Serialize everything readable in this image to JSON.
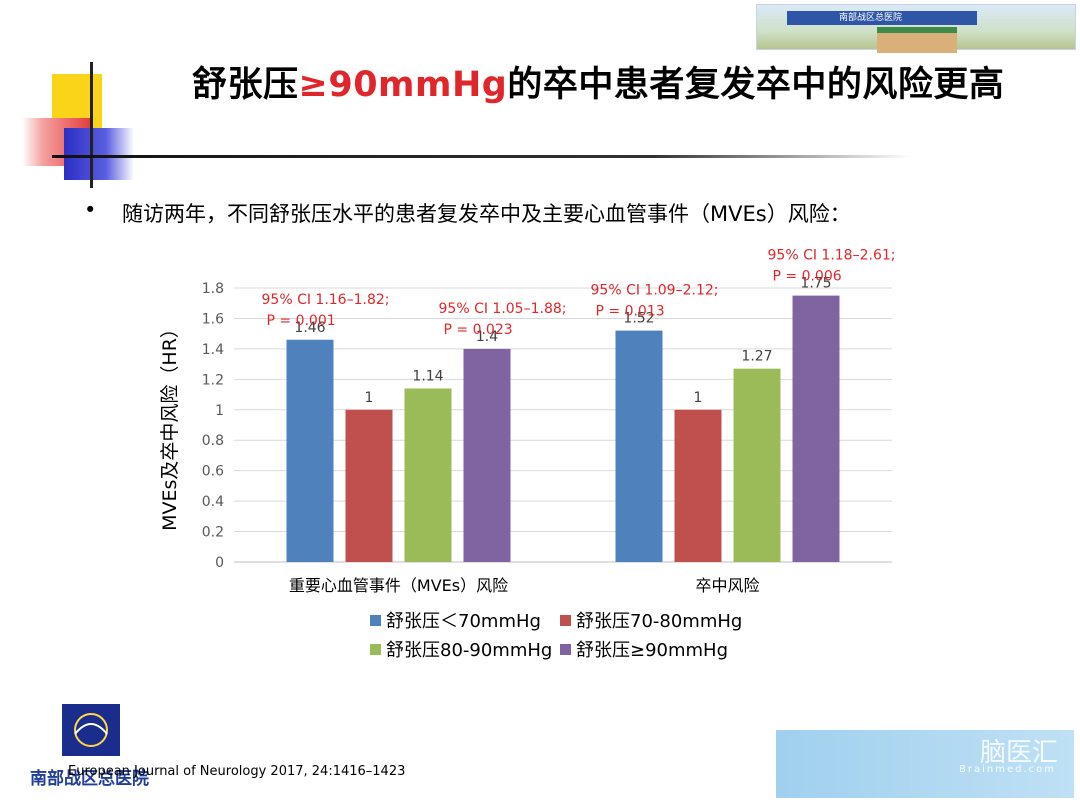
{
  "header": {
    "title_prefix": "舒张压",
    "title_highlight": "≥90mmHg",
    "title_suffix": "的卒中患者复发卒中的风险更高",
    "hospital_banner_text": "南部战区总医院"
  },
  "bullet": {
    "marker": "•",
    "text": "随访两年，不同舒张压水平的患者复发卒中及主要心血管事件（MVEs）风险："
  },
  "chart_data": {
    "type": "bar",
    "title": "",
    "ylabel": "MVEs及卒中风险（HR）",
    "xlabel": "",
    "ylim": [
      0,
      1.8
    ],
    "yticks": [
      0,
      0.2,
      0.4,
      0.6,
      0.8,
      1,
      1.2,
      1.4,
      1.6,
      1.8
    ],
    "ytick_labels": [
      "0",
      "0.2",
      "0.4",
      "0.6",
      "0.8",
      "1",
      "1.2",
      "1.4",
      "1.6",
      "1.8"
    ],
    "grid": true,
    "legend_position": "bottom",
    "categories": [
      "重要心血管事件（MVEs）风险",
      "卒中风险"
    ],
    "series": [
      {
        "name": "舒张压＜70mmHg",
        "color": "#4f81bd",
        "values": [
          1.46,
          1.52
        ],
        "labels": [
          "1.46",
          "1.52"
        ]
      },
      {
        "name": "舒张压70-80mmHg",
        "color": "#c0504d",
        "values": [
          1,
          1
        ],
        "labels": [
          "1",
          "1"
        ]
      },
      {
        "name": "舒张压80-90mmHg",
        "color": "#9bbb59",
        "values": [
          1.14,
          1.27
        ],
        "labels": [
          "1.14",
          "1.27"
        ]
      },
      {
        "name": "舒张压≥90mmHg",
        "color": "#8064a2",
        "values": [
          1.4,
          1.75
        ],
        "labels": [
          "1.4",
          "1.75"
        ]
      }
    ],
    "annotations": [
      {
        "series": 0,
        "category": 0,
        "lines": [
          "95% CI 1.16–1.82;",
          "P = 0.001"
        ]
      },
      {
        "series": 3,
        "category": 0,
        "lines": [
          "95% CI 1.05–1.88;",
          "P = 0.023"
        ]
      },
      {
        "series": 0,
        "category": 1,
        "lines": [
          "95% CI 1.09–2.12;",
          "P = 0.013"
        ]
      },
      {
        "series": 3,
        "category": 1,
        "lines": [
          "95% CI 1.18–2.61;",
          "P = 0.006"
        ]
      }
    ],
    "annotation_color": "#e0262a"
  },
  "footer": {
    "reference": "European Journal of Neurology 2017, 24:1416–1423",
    "logo_text": "南部战区总医院",
    "watermark_main": "脑医汇",
    "watermark_sub": "Brainmed.com"
  }
}
